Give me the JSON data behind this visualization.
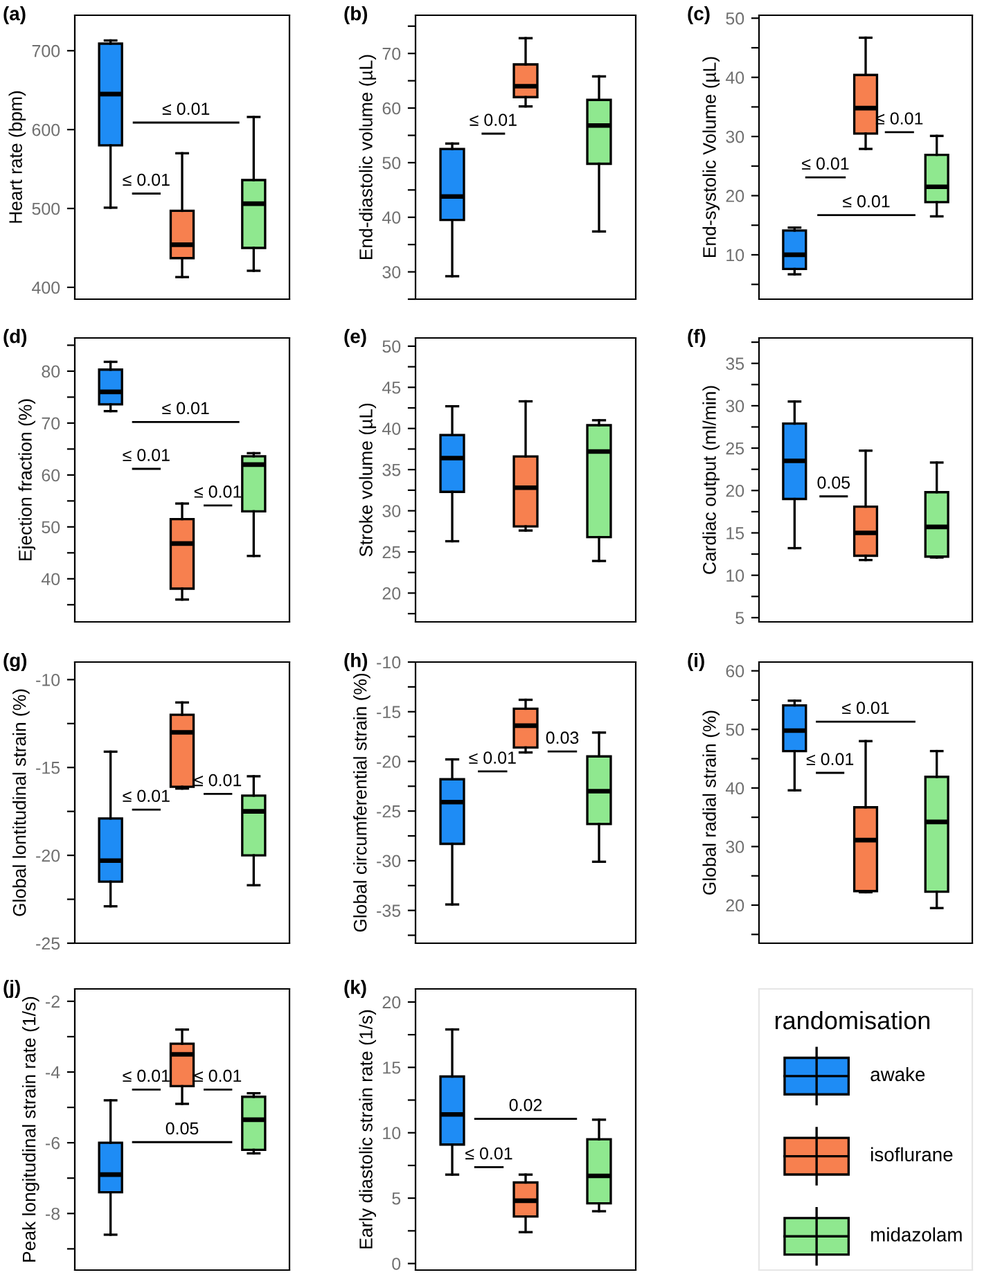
{
  "chart_data": [
    {
      "type": "box",
      "title": "(a)",
      "ylabel": "Heart rate (bpm)",
      "categories": [
        null,
        null,
        null
      ],
      "colors": [
        "#1e8cf5",
        "#f7804f",
        "#8fe88f"
      ],
      "tick_labels": "y",
      "ylim": [
        385,
        745
      ],
      "yticks": [
        400,
        500,
        600,
        700
      ],
      "boxes": [
        {
          "low": 501,
          "q1": 580,
          "median": 645,
          "q3": 709,
          "high": 713
        },
        {
          "low": 413,
          "q1": 437,
          "median": 454,
          "q3": 497,
          "high": 570
        },
        {
          "low": 421,
          "q1": 450,
          "median": 506,
          "q3": 536,
          "high": 616
        }
      ],
      "annotations": [
        "≤ 0.01",
        "≤ 0.01"
      ]
    },
    {
      "type": "box",
      "title": "(b)",
      "ylabel": "End-diastolic volume (µL)",
      "categories": [
        null,
        null,
        null
      ],
      "colors": [
        "#1e8cf5",
        "#f7804f",
        "#8fe88f"
      ],
      "tick_labels": "y",
      "ylim": [
        25,
        77
      ],
      "yticks": [
        {
          "value": 25,
          "label": null
        },
        30,
        {
          "value": 35,
          "label": null
        },
        40,
        {
          "value": 45,
          "label": null
        },
        50,
        {
          "value": 55,
          "label": null
        },
        60,
        {
          "value": 65,
          "label": null
        },
        70,
        {
          "value": 75,
          "label": null
        }
      ],
      "boxes": [
        {
          "low": 29.2,
          "q1": 39.5,
          "median": 43.8,
          "q3": 52.5,
          "high": 53.5
        },
        {
          "low": 60.3,
          "q1": 62.0,
          "median": 64.0,
          "q3": 68.0,
          "high": 72.8
        },
        {
          "low": 37.4,
          "q1": 49.8,
          "median": 56.8,
          "q3": 61.5,
          "high": 65.8
        }
      ],
      "annotations": [
        "≤ 0.01"
      ]
    },
    {
      "type": "box",
      "title": "(c)",
      "ylabel": "End-systolic Volume (µL)",
      "categories": [
        null,
        null,
        null
      ],
      "colors": [
        "#1e8cf5",
        "#f7804f",
        "#8fe88f"
      ],
      "tick_labels": "y",
      "ylim": [
        2.5,
        50.5
      ],
      "yticks": [
        {
          "value": 5,
          "label": null
        },
        10,
        {
          "value": 15,
          "label": null
        },
        20,
        {
          "value": 25,
          "label": null
        },
        30,
        {
          "value": 35,
          "label": null
        },
        40,
        {
          "value": 45,
          "label": null
        },
        50
      ],
      "boxes": [
        {
          "low": 6.7,
          "q1": 7.6,
          "median": 10.0,
          "q3": 14.1,
          "high": 14.6
        },
        {
          "low": 27.9,
          "q1": 30.5,
          "median": 34.8,
          "q3": 40.4,
          "high": 46.7
        },
        {
          "low": 16.5,
          "q1": 18.9,
          "median": 21.5,
          "q3": 26.9,
          "high": 30.1
        }
      ],
      "annotations": [
        "≤ 0.01",
        "≤ 0.01",
        "≤ 0.01"
      ]
    },
    {
      "type": "box",
      "title": "(d)",
      "ylabel": "Ejection fraction (%)",
      "categories": [
        null,
        null,
        null
      ],
      "colors": [
        "#1e8cf5",
        "#f7804f",
        "#8fe88f"
      ],
      "tick_labels": "y",
      "ylim": [
        31.7,
        86.4
      ],
      "yticks": [
        {
          "value": 35,
          "label": null
        },
        40,
        {
          "value": 45,
          "label": null
        },
        50,
        {
          "value": 55,
          "label": null
        },
        60,
        {
          "value": 65,
          "label": null
        },
        70,
        {
          "value": 75,
          "label": null
        },
        80,
        {
          "value": 85,
          "label": null
        }
      ],
      "boxes": [
        {
          "low": 72.3,
          "q1": 73.6,
          "median": 76.0,
          "q3": 80.3,
          "high": 81.8
        },
        {
          "low": 36.0,
          "q1": 38.1,
          "median": 46.8,
          "q3": 51.5,
          "high": 54.5
        },
        {
          "low": 44.4,
          "q1": 53.0,
          "median": 62.0,
          "q3": 63.6,
          "high": 64.2
        }
      ],
      "annotations": [
        "≤ 0.01",
        "≤ 0.01",
        "≤ 0.01"
      ]
    },
    {
      "type": "box",
      "title": "(e)",
      "ylabel": "Stroke volume (µL)",
      "categories": [
        null,
        null,
        null
      ],
      "colors": [
        "#1e8cf5",
        "#f7804f",
        "#8fe88f"
      ],
      "tick_labels": "y",
      "ylim": [
        16.5,
        51
      ],
      "yticks": [
        {
          "value": 17.5,
          "label": null
        },
        20,
        {
          "value": 22.5,
          "label": null
        },
        25,
        {
          "value": 27.5,
          "label": null
        },
        30,
        {
          "value": 32.5,
          "label": null
        },
        35,
        {
          "value": 37.5,
          "label": null
        },
        40,
        {
          "value": 42.5,
          "label": null
        },
        45,
        {
          "value": 47.5,
          "label": null
        },
        50
      ],
      "boxes": [
        {
          "low": 26.3,
          "q1": 32.3,
          "median": 36.4,
          "q3": 39.2,
          "high": 42.7
        },
        {
          "low": 27.6,
          "q1": 28.1,
          "median": 32.8,
          "q3": 36.6,
          "high": 43.3
        },
        {
          "low": 23.9,
          "q1": 26.8,
          "median": 37.2,
          "q3": 40.4,
          "high": 41.0
        }
      ]
    },
    {
      "type": "box",
      "title": "(f)",
      "ylabel": "Cardiac output (ml/min)",
      "categories": [
        null,
        null,
        null
      ],
      "colors": [
        "#1e8cf5",
        "#f7804f",
        "#8fe88f"
      ],
      "tick_labels": "y",
      "ylim": [
        4.5,
        38
      ],
      "yticks": [
        5,
        {
          "value": 7.5,
          "label": null
        },
        10,
        {
          "value": 12.5,
          "label": null
        },
        15,
        {
          "value": 17.5,
          "label": null
        },
        20,
        {
          "value": 22.5,
          "label": null
        },
        25,
        {
          "value": 27.5,
          "label": null
        },
        30,
        {
          "value": 32.5,
          "label": null
        },
        35,
        {
          "value": 37.5,
          "label": null
        }
      ],
      "boxes": [
        {
          "low": 13.2,
          "q1": 19.0,
          "median": 23.5,
          "q3": 27.9,
          "high": 30.5
        },
        {
          "low": 11.8,
          "q1": 12.3,
          "median": 15.0,
          "q3": 18.1,
          "high": 24.7
        },
        {
          "low": 12.1,
          "q1": 12.2,
          "median": 15.7,
          "q3": 19.8,
          "high": 23.3
        }
      ],
      "annotations": [
        "0.05"
      ]
    },
    {
      "type": "box",
      "title": "(g)",
      "ylabel": "Global lontitudinal strain (%)",
      "categories": [
        null,
        null,
        null
      ],
      "colors": [
        "#1e8cf5",
        "#f7804f",
        "#8fe88f"
      ],
      "tick_labels": "y",
      "ylim": [
        -25,
        -9
      ],
      "yticks": [
        -25,
        {
          "value": -22.5,
          "label": null
        },
        -20,
        {
          "value": -17.5,
          "label": null
        },
        -15,
        {
          "value": -12.5,
          "label": null
        },
        -10
      ],
      "boxes": [
        {
          "low": -22.9,
          "q1": -21.5,
          "median": -20.3,
          "q3": -17.9,
          "high": -14.1
        },
        {
          "low": -16.2,
          "q1": -16.1,
          "median": -13.0,
          "q3": -12.0,
          "high": -11.3
        },
        {
          "low": -21.7,
          "q1": -20.0,
          "median": -17.5,
          "q3": -16.6,
          "high": -15.5
        }
      ],
      "annotations": [
        "≤ 0.01",
        "≤ 0.01"
      ]
    },
    {
      "type": "box",
      "title": "(h)",
      "ylabel": "Global circumferential strain (%)",
      "categories": [
        null,
        null,
        null
      ],
      "colors": [
        "#1e8cf5",
        "#f7804f",
        "#8fe88f"
      ],
      "tick_labels": "y",
      "ylim": [
        -38.3,
        -10
      ],
      "yticks": [
        {
          "value": -37.5,
          "label": null
        },
        -35,
        {
          "value": -32.5,
          "label": null
        },
        -30,
        {
          "value": -27.5,
          "label": null
        },
        -25,
        {
          "value": -22.5,
          "label": null
        },
        -20,
        {
          "value": -17.5,
          "label": null
        },
        -15,
        {
          "value": -12.5,
          "label": null
        },
        -10
      ],
      "boxes": [
        {
          "low": -34.4,
          "q1": -28.3,
          "median": -24.1,
          "q3": -21.8,
          "high": -19.8
        },
        {
          "low": -19.1,
          "q1": -18.6,
          "median": -16.4,
          "q3": -14.7,
          "high": -13.8
        },
        {
          "low": -30.1,
          "q1": -26.3,
          "median": -23.0,
          "q3": -19.5,
          "high": -17.1
        }
      ],
      "annotations": [
        "≤ 0.01",
        "0.03"
      ]
    },
    {
      "type": "box",
      "title": "(i)",
      "ylabel": "Global radial strain (%)",
      "categories": [
        null,
        null,
        null
      ],
      "colors": [
        "#1e8cf5",
        "#f7804f",
        "#8fe88f"
      ],
      "tick_labels": "y",
      "ylim": [
        13.5,
        61.5
      ],
      "yticks": [
        {
          "value": 15,
          "label": null
        },
        20,
        {
          "value": 25,
          "label": null
        },
        30,
        {
          "value": 35,
          "label": null
        },
        40,
        {
          "value": 45,
          "label": null
        },
        50,
        {
          "value": 55,
          "label": null
        },
        60
      ],
      "boxes": [
        {
          "low": 39.6,
          "q1": 46.3,
          "median": 49.8,
          "q3": 54.1,
          "high": 54.9
        },
        {
          "low": 22.2,
          "q1": 22.4,
          "median": 31.1,
          "q3": 36.7,
          "high": 48.0
        },
        {
          "low": 19.5,
          "q1": 22.3,
          "median": 34.2,
          "q3": 41.9,
          "high": 46.3
        }
      ],
      "annotations": [
        "≤ 0.01",
        "≤ 0.01"
      ]
    },
    {
      "type": "box",
      "title": "(j)",
      "ylabel": "Peak longitudinal strain rate (1/s)",
      "categories": [
        null,
        null,
        null
      ],
      "colors": [
        "#1e8cf5",
        "#f7804f",
        "#8fe88f"
      ],
      "tick_labels": "y",
      "ylim": [
        -9.6,
        -1.65
      ],
      "yticks": [
        {
          "value": -9,
          "label": null
        },
        -8,
        {
          "value": -7,
          "label": null
        },
        -6,
        {
          "value": -5,
          "label": null
        },
        -4,
        {
          "value": -3,
          "label": null
        },
        -2
      ],
      "boxes": [
        {
          "low": -8.6,
          "q1": -7.4,
          "median": -6.9,
          "q3": -6.0,
          "high": -4.8
        },
        {
          "low": -4.9,
          "q1": -4.4,
          "median": -3.5,
          "q3": -3.2,
          "high": -2.8
        },
        {
          "low": -6.3,
          "q1": -6.2,
          "median": -5.35,
          "q3": -4.7,
          "high": -4.6
        }
      ],
      "annotations": [
        "≤ 0.01",
        "≤ 0.01",
        "0.05"
      ]
    },
    {
      "type": "box",
      "title": "(k)",
      "ylabel": "Early diastolic strain rate (1/s)",
      "categories": [
        null,
        null,
        null
      ],
      "colors": [
        "#1e8cf5",
        "#f7804f",
        "#8fe88f"
      ],
      "tick_labels": "y",
      "ylim": [
        -0.5,
        21
      ],
      "yticks": [
        0,
        {
          "value": 2.5,
          "label": null
        },
        5,
        {
          "value": 7.5,
          "label": null
        },
        10,
        {
          "value": 12.5,
          "label": null
        },
        15,
        {
          "value": 17.5,
          "label": null
        },
        20
      ],
      "boxes": [
        {
          "low": 6.8,
          "q1": 9.1,
          "median": 11.4,
          "q3": 14.3,
          "high": 17.9
        },
        {
          "low": 2.4,
          "q1": 3.6,
          "median": 4.8,
          "q3": 6.2,
          "high": 6.8
        },
        {
          "low": 4.0,
          "q1": 4.6,
          "median": 6.7,
          "q3": 9.5,
          "high": 11.0
        }
      ],
      "annotations": [
        "0.02",
        "≤ 0.01"
      ]
    },
    {
      "type": "other",
      "legend_title": "randomisation",
      "categories": [
        "awake",
        "isoflurane",
        "midazolam"
      ],
      "colors": [
        "#1e8cf5",
        "#f7804f",
        "#8fe88f"
      ]
    }
  ]
}
